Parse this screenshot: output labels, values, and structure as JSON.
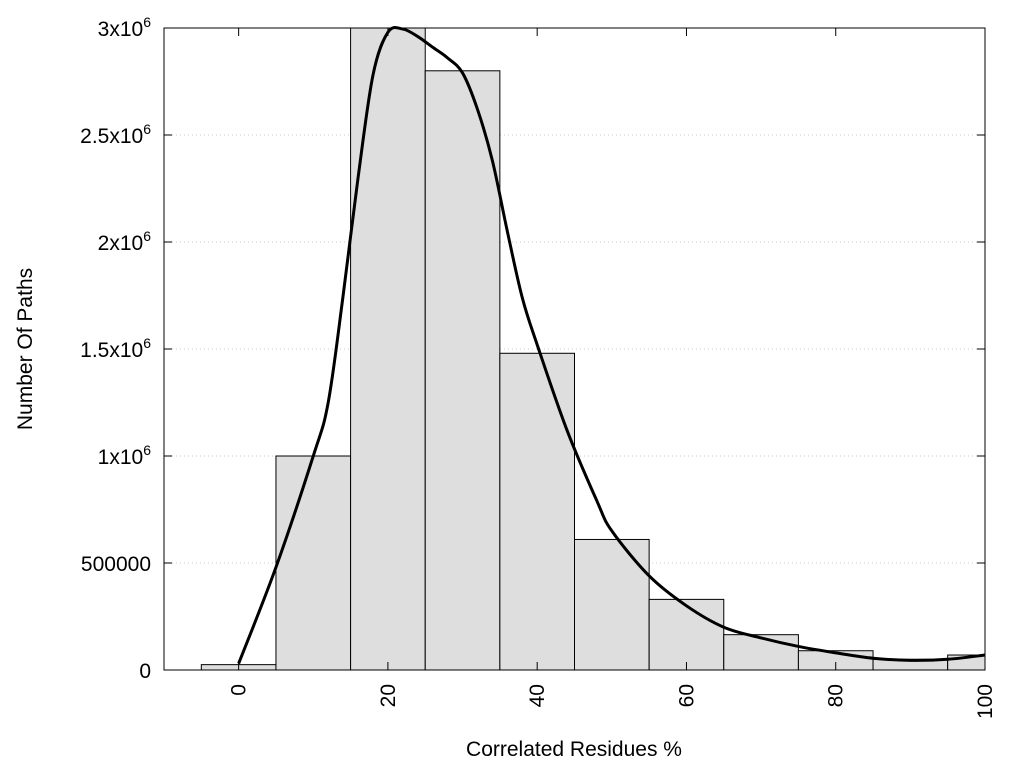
{
  "chart_data": {
    "type": "bar",
    "title": "",
    "xlabel": "Correlated Residues %",
    "ylabel": "Number Of Paths",
    "xlim": [
      -10,
      100
    ],
    "ylim": [
      0,
      3000000
    ],
    "grid": true,
    "bin_width": 10,
    "bars": [
      {
        "x": 0,
        "value": 25000
      },
      {
        "x": 10,
        "value": 1000000
      },
      {
        "x": 20,
        "value": 3000000
      },
      {
        "x": 30,
        "value": 2800000
      },
      {
        "x": 40,
        "value": 1480000
      },
      {
        "x": 50,
        "value": 610000
      },
      {
        "x": 60,
        "value": 330000
      },
      {
        "x": 70,
        "value": 165000
      },
      {
        "x": 80,
        "value": 90000
      },
      {
        "x": 90,
        "value": 50000
      },
      {
        "x": 100,
        "value": 70000
      }
    ],
    "fit_curve": {
      "x": [
        0,
        5,
        10,
        12,
        14,
        16,
        18,
        20,
        22,
        24,
        26,
        28,
        30,
        32,
        34,
        36,
        38,
        40,
        44,
        48,
        50,
        55,
        60,
        65,
        70,
        75,
        80,
        85,
        90,
        95,
        100
      ],
      "y": [
        30000,
        480000,
        1000000,
        1250000,
        1750000,
        2300000,
        2780000,
        2980000,
        2995000,
        2960000,
        2910000,
        2860000,
        2790000,
        2620000,
        2380000,
        2050000,
        1740000,
        1520000,
        1120000,
        790000,
        650000,
        440000,
        300000,
        200000,
        150000,
        110000,
        80000,
        55000,
        45000,
        50000,
        70000
      ]
    },
    "x_ticks": [
      {
        "value": 0,
        "label": "0"
      },
      {
        "value": 20,
        "label": "20"
      },
      {
        "value": 40,
        "label": "40"
      },
      {
        "value": 60,
        "label": "60"
      },
      {
        "value": 80,
        "label": "80"
      },
      {
        "value": 100,
        "label": "100"
      }
    ],
    "y_ticks": [
      {
        "value": 0,
        "label": "0",
        "exp": ""
      },
      {
        "value": 500000,
        "label": "500000",
        "exp": ""
      },
      {
        "value": 1000000,
        "label": "1x10",
        "exp": "6"
      },
      {
        "value": 1500000,
        "label": "1.5x10",
        "exp": "6"
      },
      {
        "value": 2000000,
        "label": "2x10",
        "exp": "6"
      },
      {
        "value": 2500000,
        "label": "2.5x10",
        "exp": "6"
      },
      {
        "value": 3000000,
        "label": "3x10",
        "exp": "6"
      }
    ],
    "colors": {
      "bar_fill": "#dedede",
      "bar_stroke": "#000000",
      "curve": "#000000"
    }
  }
}
